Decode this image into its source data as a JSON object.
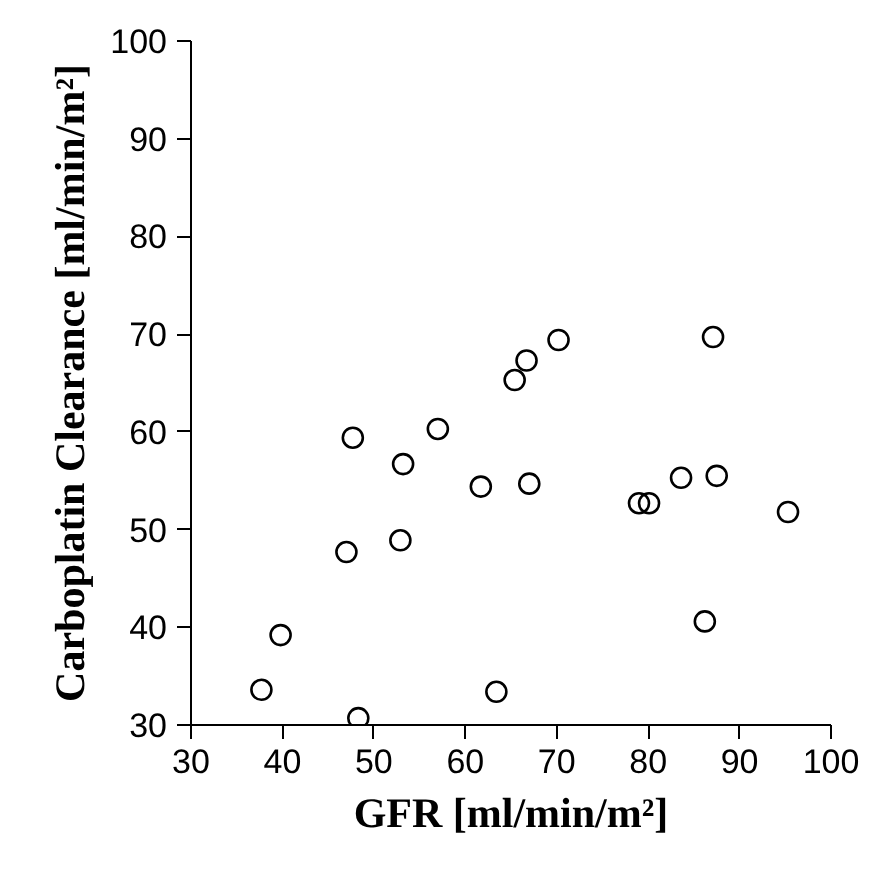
{
  "chart_data": {
    "type": "scatter",
    "xlabel": "GFR [ml/min/m²]",
    "ylabel": "Carboplatin Clearance [ml/min/m²]",
    "x": [
      37.7,
      39.8,
      48.3,
      47.0,
      47.7,
      52.9,
      53.2,
      57.0,
      61.7,
      63.4,
      65.4,
      66.7,
      67.0,
      70.2,
      79.0,
      80.1,
      83.6,
      87.5,
      87.1,
      95.3,
      86.2
    ],
    "values": [
      33.6,
      39.2,
      30.7,
      47.7,
      59.4,
      48.9,
      56.7,
      60.3,
      54.4,
      33.4,
      65.3,
      67.3,
      54.7,
      69.4,
      52.7,
      52.7,
      55.3,
      55.5,
      69.7,
      51.8,
      40.6
    ],
    "color": "#000000",
    "marker": "circle",
    "xlim": [
      30,
      100
    ],
    "ylim": [
      30,
      100
    ],
    "xticks": [
      30,
      40,
      50,
      60,
      70,
      80,
      90,
      100
    ],
    "yticks": [
      30,
      40,
      50,
      60,
      70,
      80,
      90,
      100
    ],
    "grid": false
  }
}
